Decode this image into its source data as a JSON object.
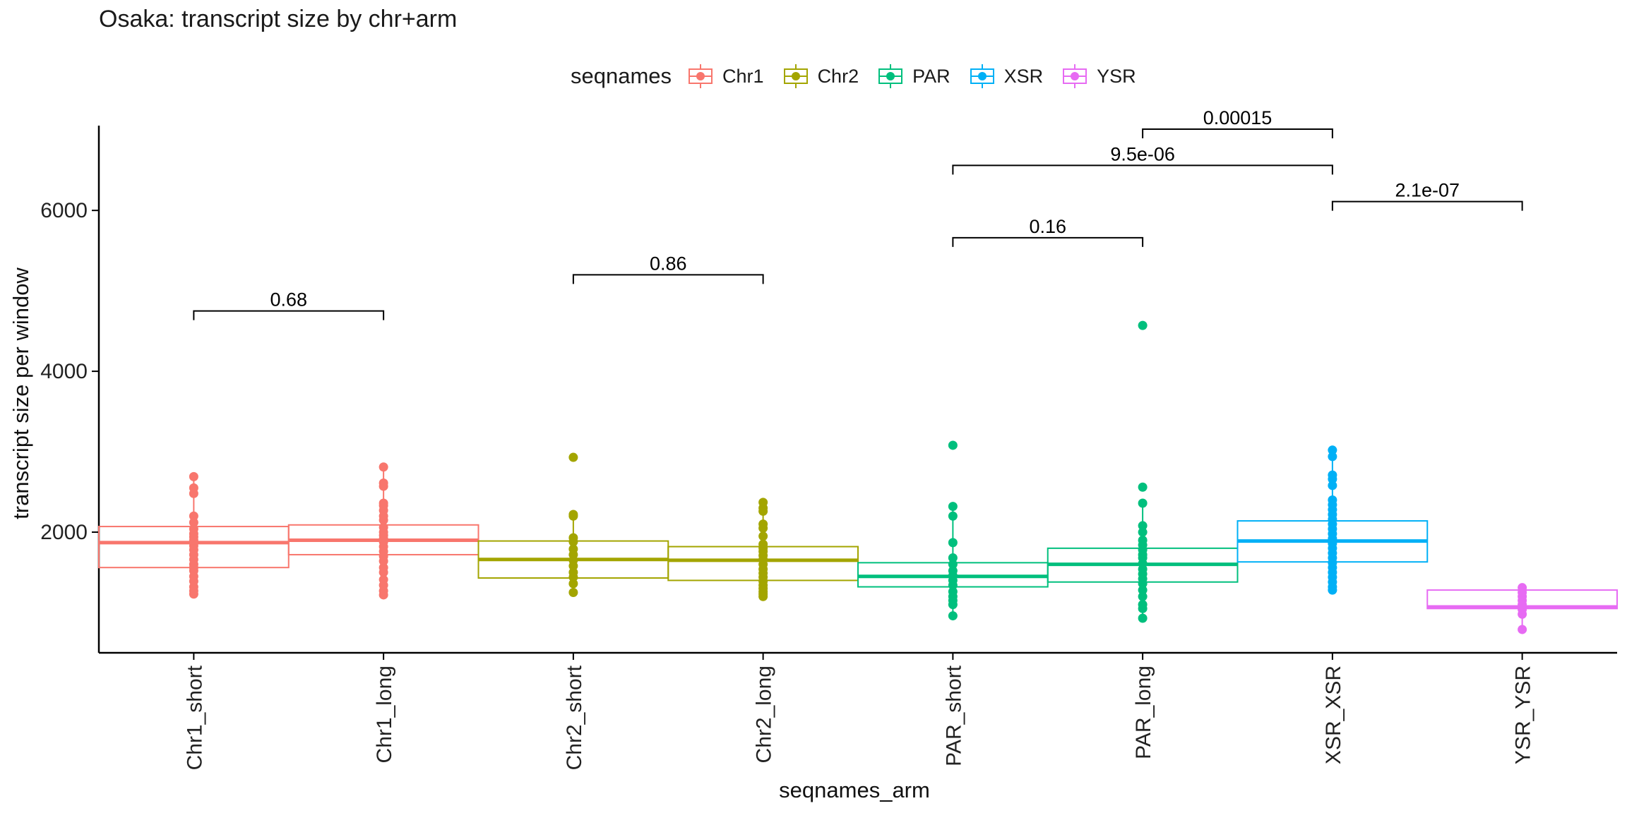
{
  "title": "Osaka: transcript size by chr+arm",
  "legend": {
    "title": "seqnames",
    "items": [
      {
        "label": "Chr1",
        "color": "#F8766D"
      },
      {
        "label": "Chr2",
        "color": "#A3A500"
      },
      {
        "label": "PAR",
        "color": "#00BF7D"
      },
      {
        "label": "XSR",
        "color": "#00B0F6"
      },
      {
        "label": "YSR",
        "color": "#E76BF3"
      }
    ]
  },
  "chart_data": {
    "type": "box",
    "xlabel": "seqnames_arm",
    "ylabel": "transcript size per window",
    "ylim": [
      500,
      7300
    ],
    "yticks": [
      2000,
      4000,
      6000
    ],
    "grid": false,
    "legend_position": "top",
    "categories": [
      "Chr1_short",
      "Chr1_long",
      "Chr2_short",
      "Chr2_long",
      "PAR_short",
      "PAR_long",
      "XSR_XSR",
      "YSR_YSR"
    ],
    "boxes": [
      {
        "category": "Chr1_short",
        "group": "Chr1",
        "q1": 1560,
        "median": 1870,
        "q3": 2070,
        "whisker_low": 1230,
        "whisker_high": 2690,
        "points": [
          1230,
          1270,
          1320,
          1390,
          1450,
          1520,
          1560,
          1600,
          1660,
          1720,
          1780,
          1830,
          1870,
          1900,
          1940,
          1980,
          2040,
          2120,
          2200,
          2480,
          2550,
          2690
        ]
      },
      {
        "category": "Chr1_long",
        "group": "Chr1",
        "q1": 1720,
        "median": 1900,
        "q3": 2090,
        "whisker_low": 1220,
        "whisker_high": 2810,
        "points": [
          1220,
          1270,
          1340,
          1410,
          1500,
          1560,
          1640,
          1700,
          1760,
          1820,
          1880,
          1920,
          1960,
          2000,
          2060,
          2150,
          2200,
          2270,
          2330,
          2360,
          2570,
          2610,
          2810
        ]
      },
      {
        "category": "Chr2_short",
        "group": "Chr2",
        "q1": 1430,
        "median": 1660,
        "q3": 1890,
        "whisker_low": 1250,
        "whisker_high": 2220,
        "points": [
          1250,
          1360,
          1440,
          1500,
          1580,
          1650,
          1720,
          1790,
          1880,
          1930,
          2200,
          2220,
          2930
        ]
      },
      {
        "category": "Chr2_long",
        "group": "Chr2",
        "q1": 1400,
        "median": 1650,
        "q3": 1820,
        "whisker_low": 1200,
        "whisker_high": 2370,
        "points": [
          1200,
          1230,
          1260,
          1300,
          1340,
          1390,
          1440,
          1490,
          1540,
          1600,
          1660,
          1710,
          1760,
          1800,
          1850,
          1950,
          2050,
          2100,
          2260,
          2300,
          2370
        ]
      },
      {
        "category": "PAR_short",
        "group": "PAR",
        "q1": 1320,
        "median": 1450,
        "q3": 1620,
        "whisker_low": 960,
        "whisker_high": 2320,
        "points": [
          960,
          1100,
          1150,
          1200,
          1260,
          1340,
          1400,
          1460,
          1520,
          1600,
          1680,
          1870,
          2200,
          2320,
          3080
        ]
      },
      {
        "category": "PAR_long",
        "group": "PAR",
        "q1": 1380,
        "median": 1600,
        "q3": 1800,
        "whisker_low": 930,
        "whisker_high": 2360,
        "points": [
          930,
          1050,
          1100,
          1200,
          1280,
          1360,
          1420,
          1480,
          1540,
          1610,
          1680,
          1720,
          1780,
          1840,
          1900,
          2000,
          2080,
          2360,
          2560,
          4570
        ]
      },
      {
        "category": "XSR_XSR",
        "group": "XSR",
        "q1": 1630,
        "median": 1890,
        "q3": 2140,
        "whisker_low": 1280,
        "whisker_high": 2940,
        "points": [
          1280,
          1320,
          1380,
          1440,
          1500,
          1560,
          1620,
          1680,
          1740,
          1800,
          1860,
          1920,
          1980,
          2040,
          2100,
          2160,
          2220,
          2280,
          2340,
          2400,
          2580,
          2660,
          2710,
          2940,
          3020
        ]
      },
      {
        "category": "YSR_YSR",
        "group": "YSR",
        "q1": 1050,
        "median": 1070,
        "q3": 1280,
        "whisker_low": 790,
        "whisker_high": 1310,
        "points": [
          790,
          980,
          1040,
          1070,
          1100,
          1150,
          1200,
          1250,
          1310
        ]
      }
    ],
    "comparisons": [
      {
        "from": "Chr1_short",
        "to": "Chr1_long",
        "y": 4750,
        "label": "0.68"
      },
      {
        "from": "Chr2_short",
        "to": "Chr2_long",
        "y": 5200,
        "label": "0.86"
      },
      {
        "from": "PAR_short",
        "to": "PAR_long",
        "y": 5660,
        "label": "0.16"
      },
      {
        "from": "PAR_short",
        "to": "XSR_XSR",
        "y": 6560,
        "label": "9.5e-06"
      },
      {
        "from": "XSR_XSR",
        "to": "YSR_YSR",
        "y": 6110,
        "label": "2.1e-07"
      },
      {
        "from": "PAR_long",
        "to": "XSR_XSR",
        "y": 7010,
        "label": "0.00015"
      }
    ]
  }
}
